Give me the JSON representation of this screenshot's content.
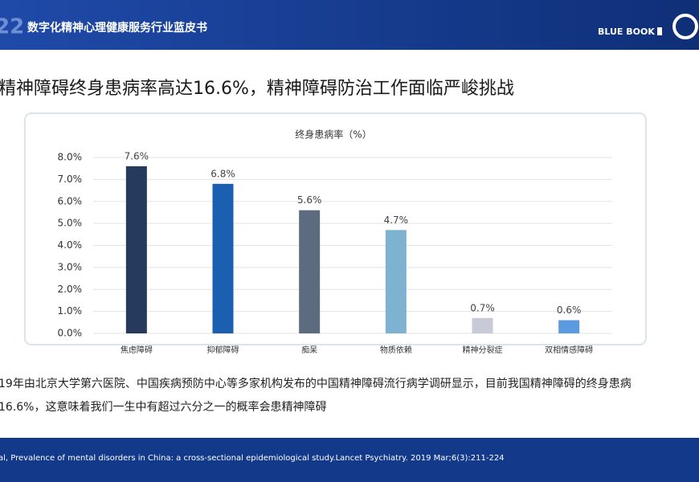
{
  "header": {
    "logo_text": "22",
    "title": "数字化精神心理健康服务行业蓝皮书",
    "badge": "BLUE BOOK"
  },
  "headline": "精神障碍终身患病率高达16.6%，精神障碍防治工作面临严峻挑战",
  "chart_data": {
    "type": "bar",
    "title": "终身患病率（%）",
    "categories": [
      "焦虑障碍",
      "抑郁障碍",
      "痴呆",
      "物质依赖",
      "精神分裂症",
      "双相情感障碍"
    ],
    "values": [
      7.6,
      6.8,
      5.6,
      4.7,
      0.7,
      0.6
    ],
    "value_labels": [
      "7.6%",
      "6.8%",
      "5.6%",
      "4.7%",
      "0.7%",
      "0.6%"
    ],
    "colors": [
      "#253a5c",
      "#1b5fb0",
      "#5c6b80",
      "#7db2d0",
      "#c8cbd5",
      "#5a9be0"
    ],
    "ylim": [
      0,
      8
    ],
    "yticks": [
      {
        "value": 0,
        "label": "0.0%"
      },
      {
        "value": 1,
        "label": "1.0%"
      },
      {
        "value": 2,
        "label": "2.0%"
      },
      {
        "value": 3,
        "label": "3.0%"
      },
      {
        "value": 4,
        "label": "4.0%"
      },
      {
        "value": 5,
        "label": "5.0%"
      },
      {
        "value": 6,
        "label": "6.0%"
      },
      {
        "value": 7,
        "label": "7.0%"
      },
      {
        "value": 8,
        "label": "8.0%"
      }
    ],
    "grid": true
  },
  "body": [
    "19年由北京大学第六医院、中国疾病预防中心等多家机构发布的中国精神障碍流行病学调研显示，目前我国精神障碍的终身患病",
    "16.6%，这意味着我们一生中有超过六分之一的概率会患精神障碍"
  ],
  "source": "al, Prevalence of mental disorders in China:  a cross-sectional  epidemiological study.Lancet Psychiatry. 2019 Mar;6(3):211-224"
}
